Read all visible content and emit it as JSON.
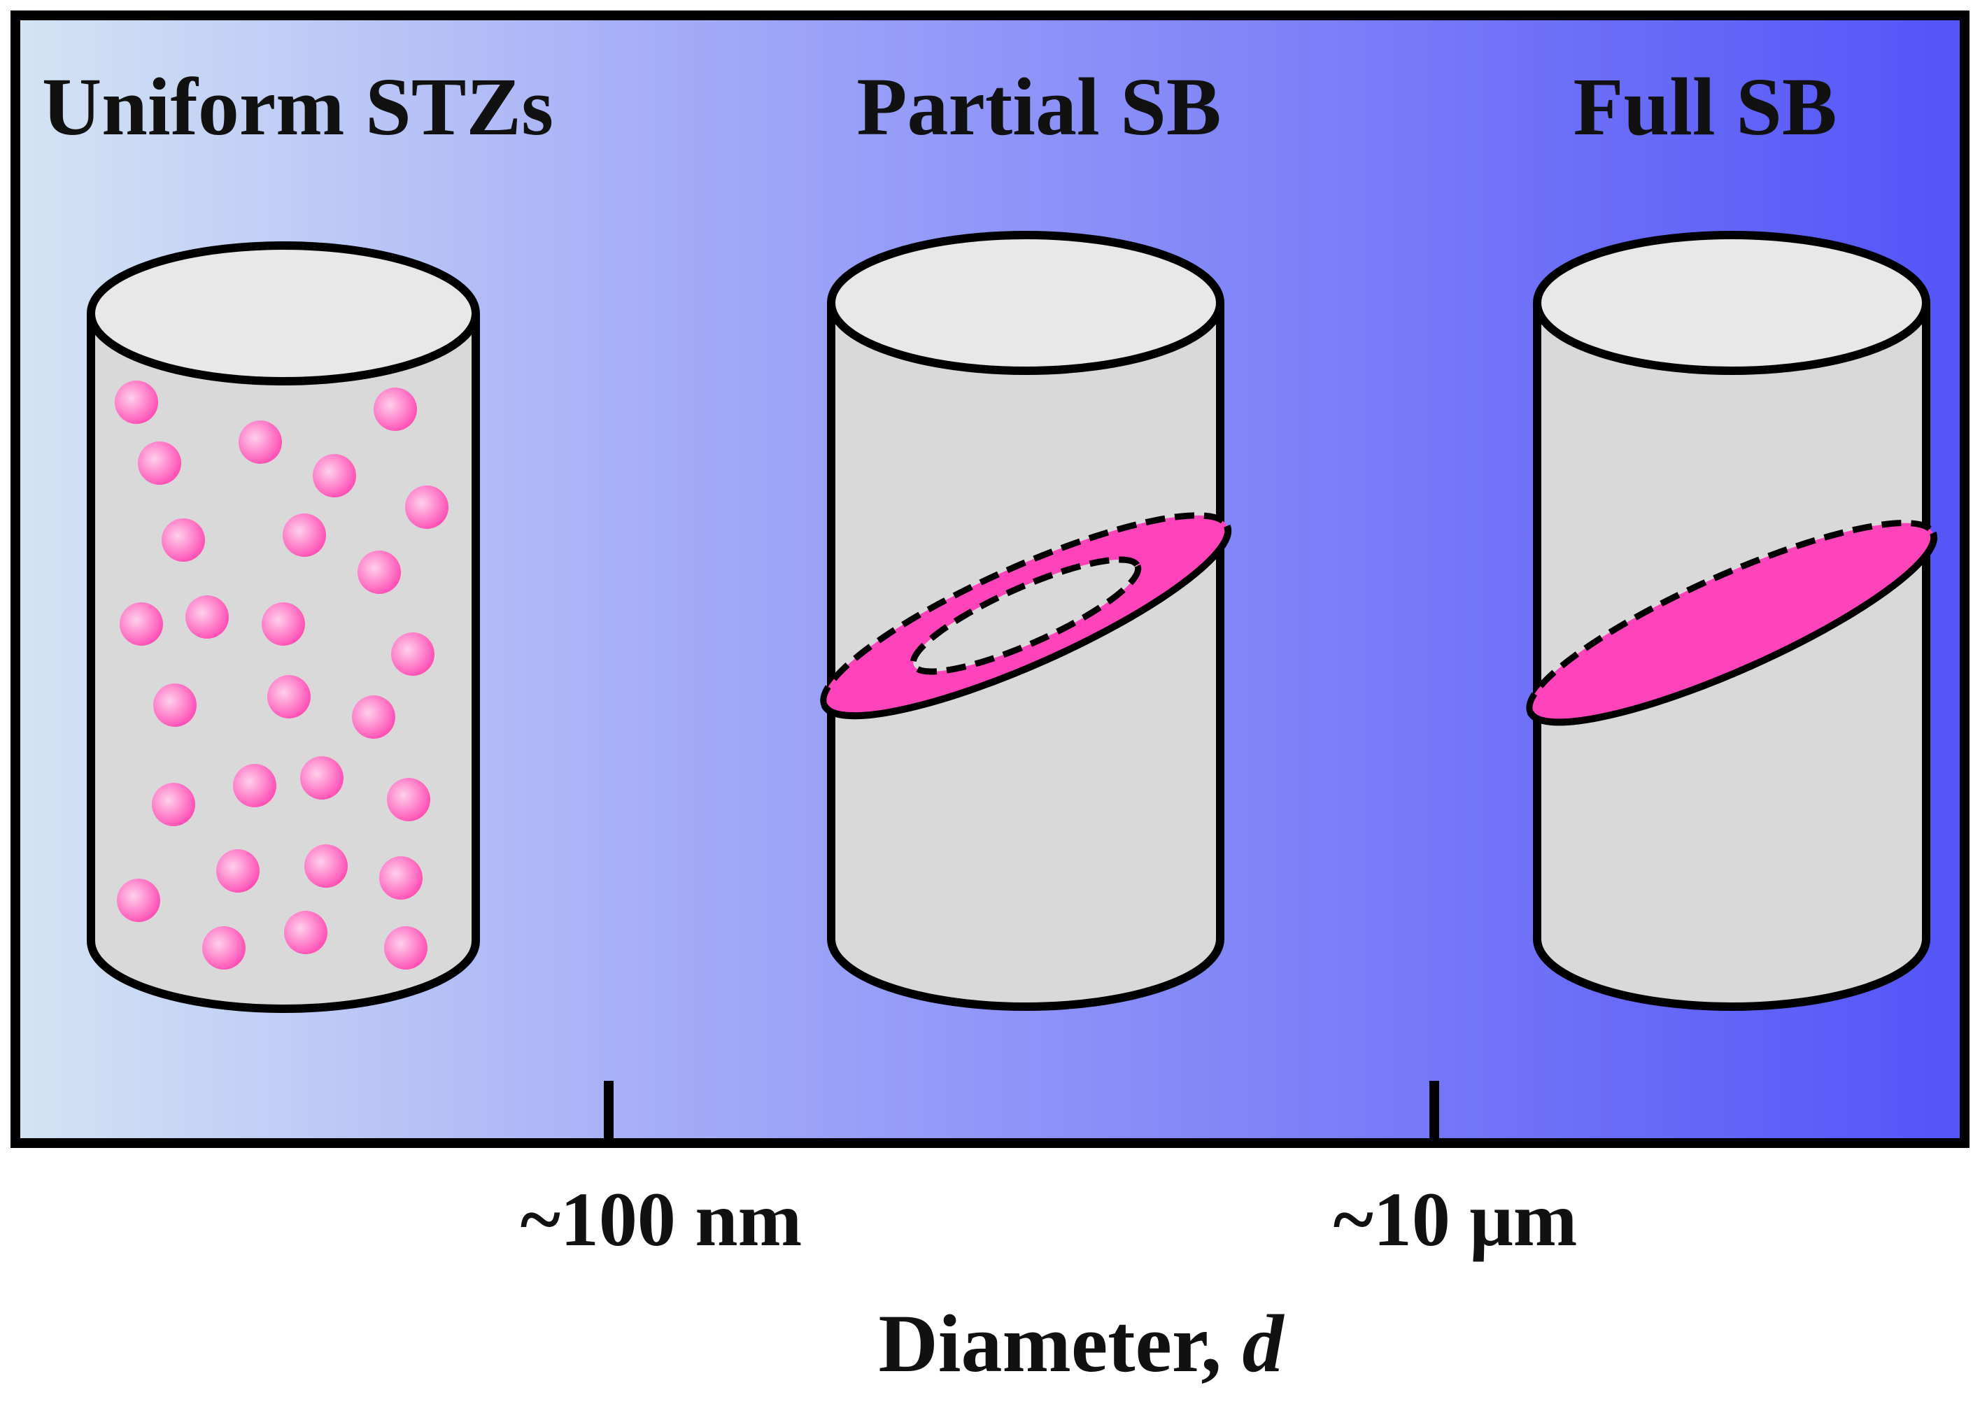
{
  "regimes": [
    {
      "id": "uniform",
      "label": "Uniform STZs"
    },
    {
      "id": "partial",
      "label": "Partial SB"
    },
    {
      "id": "full",
      "label": "Full SB"
    }
  ],
  "axis": {
    "ticks": [
      {
        "label": "~100 nm"
      },
      {
        "label": "~10 μm"
      }
    ],
    "title_prefix": "Diameter, ",
    "title_variable": "d"
  },
  "colors": {
    "gradient_left": "#d4e4f4",
    "gradient_mid": "#a2aaf8",
    "gradient_right": "#5454f8",
    "cylinder_body": "#d9d9d9",
    "cylinder_top": "#e8e8e8",
    "shear_band": "#ff44bb",
    "stz_dot_light": "#ffd0ec",
    "stz_dot_dark": "#ff4cb4",
    "outline": "#000000"
  }
}
